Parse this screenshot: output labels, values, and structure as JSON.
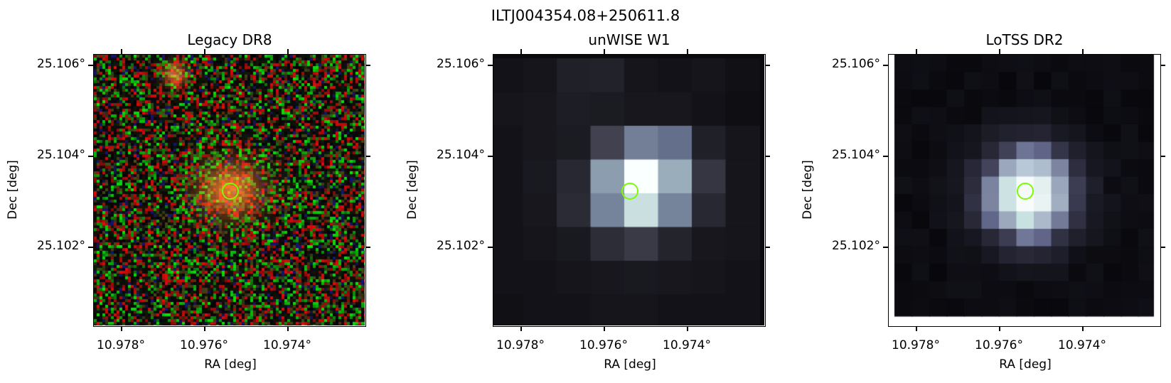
{
  "figure": {
    "title": "ILTJ004354.08+250611.8"
  },
  "panels": [
    {
      "id": "legacy",
      "title": "Legacy DR8",
      "xlabel": "RA [deg]",
      "ylabel": "Dec [deg]",
      "xticks": [
        "10.978°",
        "10.976°",
        "10.974°"
      ],
      "yticks": [
        "25.106°",
        "25.104°",
        "25.102°"
      ],
      "image_kind": "optical-rgb-noise"
    },
    {
      "id": "unwise",
      "title": "unWISE W1",
      "xlabel": "RA [deg]",
      "ylabel": "Dec [deg]",
      "xticks": [
        "10.978°",
        "10.976°",
        "10.974°"
      ],
      "yticks": [
        "25.106°",
        "25.104°",
        "25.102°"
      ],
      "image_kind": "infrared-coarse-grayscale"
    },
    {
      "id": "lotss",
      "title": "LoTSS DR2",
      "xlabel": "RA [deg]",
      "ylabel": "Dec [deg]",
      "xticks": [
        "10.978°",
        "10.976°",
        "10.974°"
      ],
      "yticks": [
        "25.106°",
        "25.104°",
        "25.102°"
      ],
      "image_kind": "radio-grayscale"
    }
  ],
  "marker": {
    "shape": "circle",
    "color": "#7cfc00",
    "ra": 10.97537,
    "dec": 25.10325
  },
  "colors": {
    "axis": "#000000",
    "background": "#ffffff"
  }
}
